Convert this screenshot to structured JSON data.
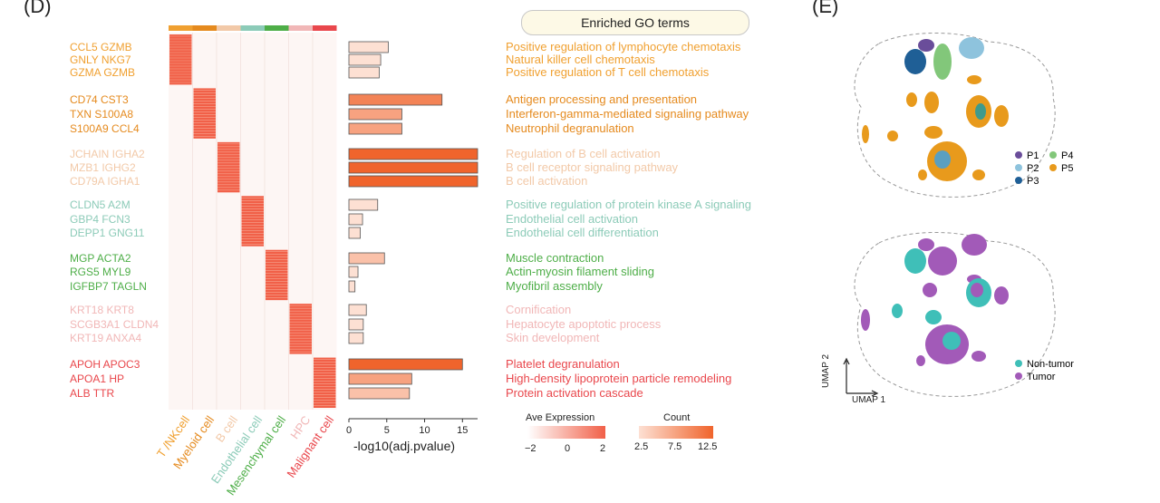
{
  "panel_labels": {
    "left": "(D)",
    "right": "(E)"
  },
  "go_header": "Enriched GO terms",
  "colors": {
    "T/NK": "#f0a030",
    "Myeloid": "#e58a1e",
    "B": "#f2c9a8",
    "Endothelial": "#8ccbb8",
    "Mesenchymal": "#4eae48",
    "HPC": "#f1b7b7",
    "Malignant": "#e9474c",
    "heat": "#f16048",
    "bar_fill": "#f27b52",
    "bar_stroke": "#c0502e"
  },
  "cell_types": [
    "T /NKcell",
    "Myeloid cell",
    "B cell",
    "Endothelial cell",
    "Mesenchymal cell",
    "HPC",
    "Malignant cell"
  ],
  "gene_groups": [
    {
      "color": "#f0a030",
      "genes": [
        "CCL5  GZMB",
        "GNLY  NKG7",
        "GZMA GZMB"
      ]
    },
    {
      "color": "#e58a1e",
      "genes": [
        "CD74 CST3",
        "TXN  S100A8",
        "S100A9 CCL4"
      ]
    },
    {
      "color": "#f2c9a8",
      "genes": [
        "JCHAIN IGHA2",
        "MZB1 IGHG2",
        "CD79A IGHA1"
      ]
    },
    {
      "color": "#8ccbb8",
      "genes": [
        "CLDN5 A2M",
        "GBP4 FCN3",
        "DEPP1 GNG11"
      ]
    },
    {
      "color": "#4eae48",
      "genes": [
        "MGP ACTA2",
        "RGS5 MYL9",
        "IGFBP7 TAGLN"
      ]
    },
    {
      "color": "#f1b7b7",
      "genes": [
        "KRT18 KRT8",
        "SCGB3A1 CLDN4",
        "KRT19 ANXA4"
      ]
    },
    {
      "color": "#e9474c",
      "genes": [
        "APOH APOC3",
        "APOA1 HP",
        "ALB TTR"
      ]
    }
  ],
  "go_terms": [
    {
      "color": "#f0a030",
      "terms": [
        "Positive regulation of lymphocyte chemotaxis",
        "Natural killer cell chemotaxis",
        "Positive regulation of T cell chemotaxis"
      ]
    },
    {
      "color": "#e58a1e",
      "terms": [
        "Antigen processing and presentation",
        "Interferon-gamma-mediated signaling pathway",
        "Neutrophil degranulation"
      ]
    },
    {
      "color": "#f2c9a8",
      "terms": [
        "Regulation of B cell activation",
        "B cell receptor signaling pathway",
        "B cell activation"
      ]
    },
    {
      "color": "#8ccbb8",
      "terms": [
        "Positive regulation of protein kinase A signaling",
        "Endothelial cell activation",
        "Endothelial cell differentiation"
      ]
    },
    {
      "color": "#4eae48",
      "terms": [
        "Muscle contraction",
        "Actin-myosin filament sliding",
        "Myofibril assembly"
      ]
    },
    {
      "color": "#f1b7b7",
      "terms": [
        "Cornification",
        "Hepatocyte apoptotic process",
        "Skin development"
      ]
    },
    {
      "color": "#e9474c",
      "terms": [
        "Platelet degranulation",
        "High-density lipoprotein particle remodeling",
        "Protein activation cascade"
      ]
    }
  ],
  "chart_data": {
    "type": "bar",
    "xlabel": "-log10(adj.pvalue)",
    "xlim": [
      0,
      17
    ],
    "xticks": [
      "0",
      "5",
      "10",
      "15"
    ],
    "values": [
      5.2,
      4.2,
      4.0,
      12.3,
      7.0,
      7.0,
      17.0,
      17.0,
      17.0,
      3.8,
      1.8,
      1.5,
      4.7,
      1.2,
      0.8,
      2.3,
      1.9,
      1.9,
      15.0,
      8.3,
      8.0
    ],
    "counts": [
      2.5,
      2.5,
      2.5,
      10,
      7.5,
      7.5,
      12.5,
      12.5,
      12.5,
      2.5,
      2.5,
      2.5,
      5,
      2.5,
      2.5,
      2.5,
      2.5,
      2.5,
      12.5,
      7.5,
      5
    ]
  },
  "legend_expression": {
    "title": "Ave Expression",
    "ticks": [
      "−2",
      "0",
      "2"
    ]
  },
  "legend_count": {
    "title": "Count",
    "ticks": [
      "2.5",
      "7.5",
      "12.5"
    ]
  },
  "umap_top_legend": [
    {
      "label": "P1",
      "color": "#6a4d9a"
    },
    {
      "label": "P4",
      "color": "#82c77a"
    },
    {
      "label": "P2",
      "color": "#8ec3dd"
    },
    {
      "label": "P5",
      "color": "#e89a1c"
    },
    {
      "label": "P3",
      "color": "#1f5f96"
    }
  ],
  "umap_bottom_legend": [
    {
      "label": "Non-tumor",
      "color": "#3fbfb8"
    },
    {
      "label": "Tumor",
      "color": "#a25ab8"
    }
  ],
  "umap_axes": {
    "x": "UMAP 1",
    "y": "UMAP 2"
  }
}
